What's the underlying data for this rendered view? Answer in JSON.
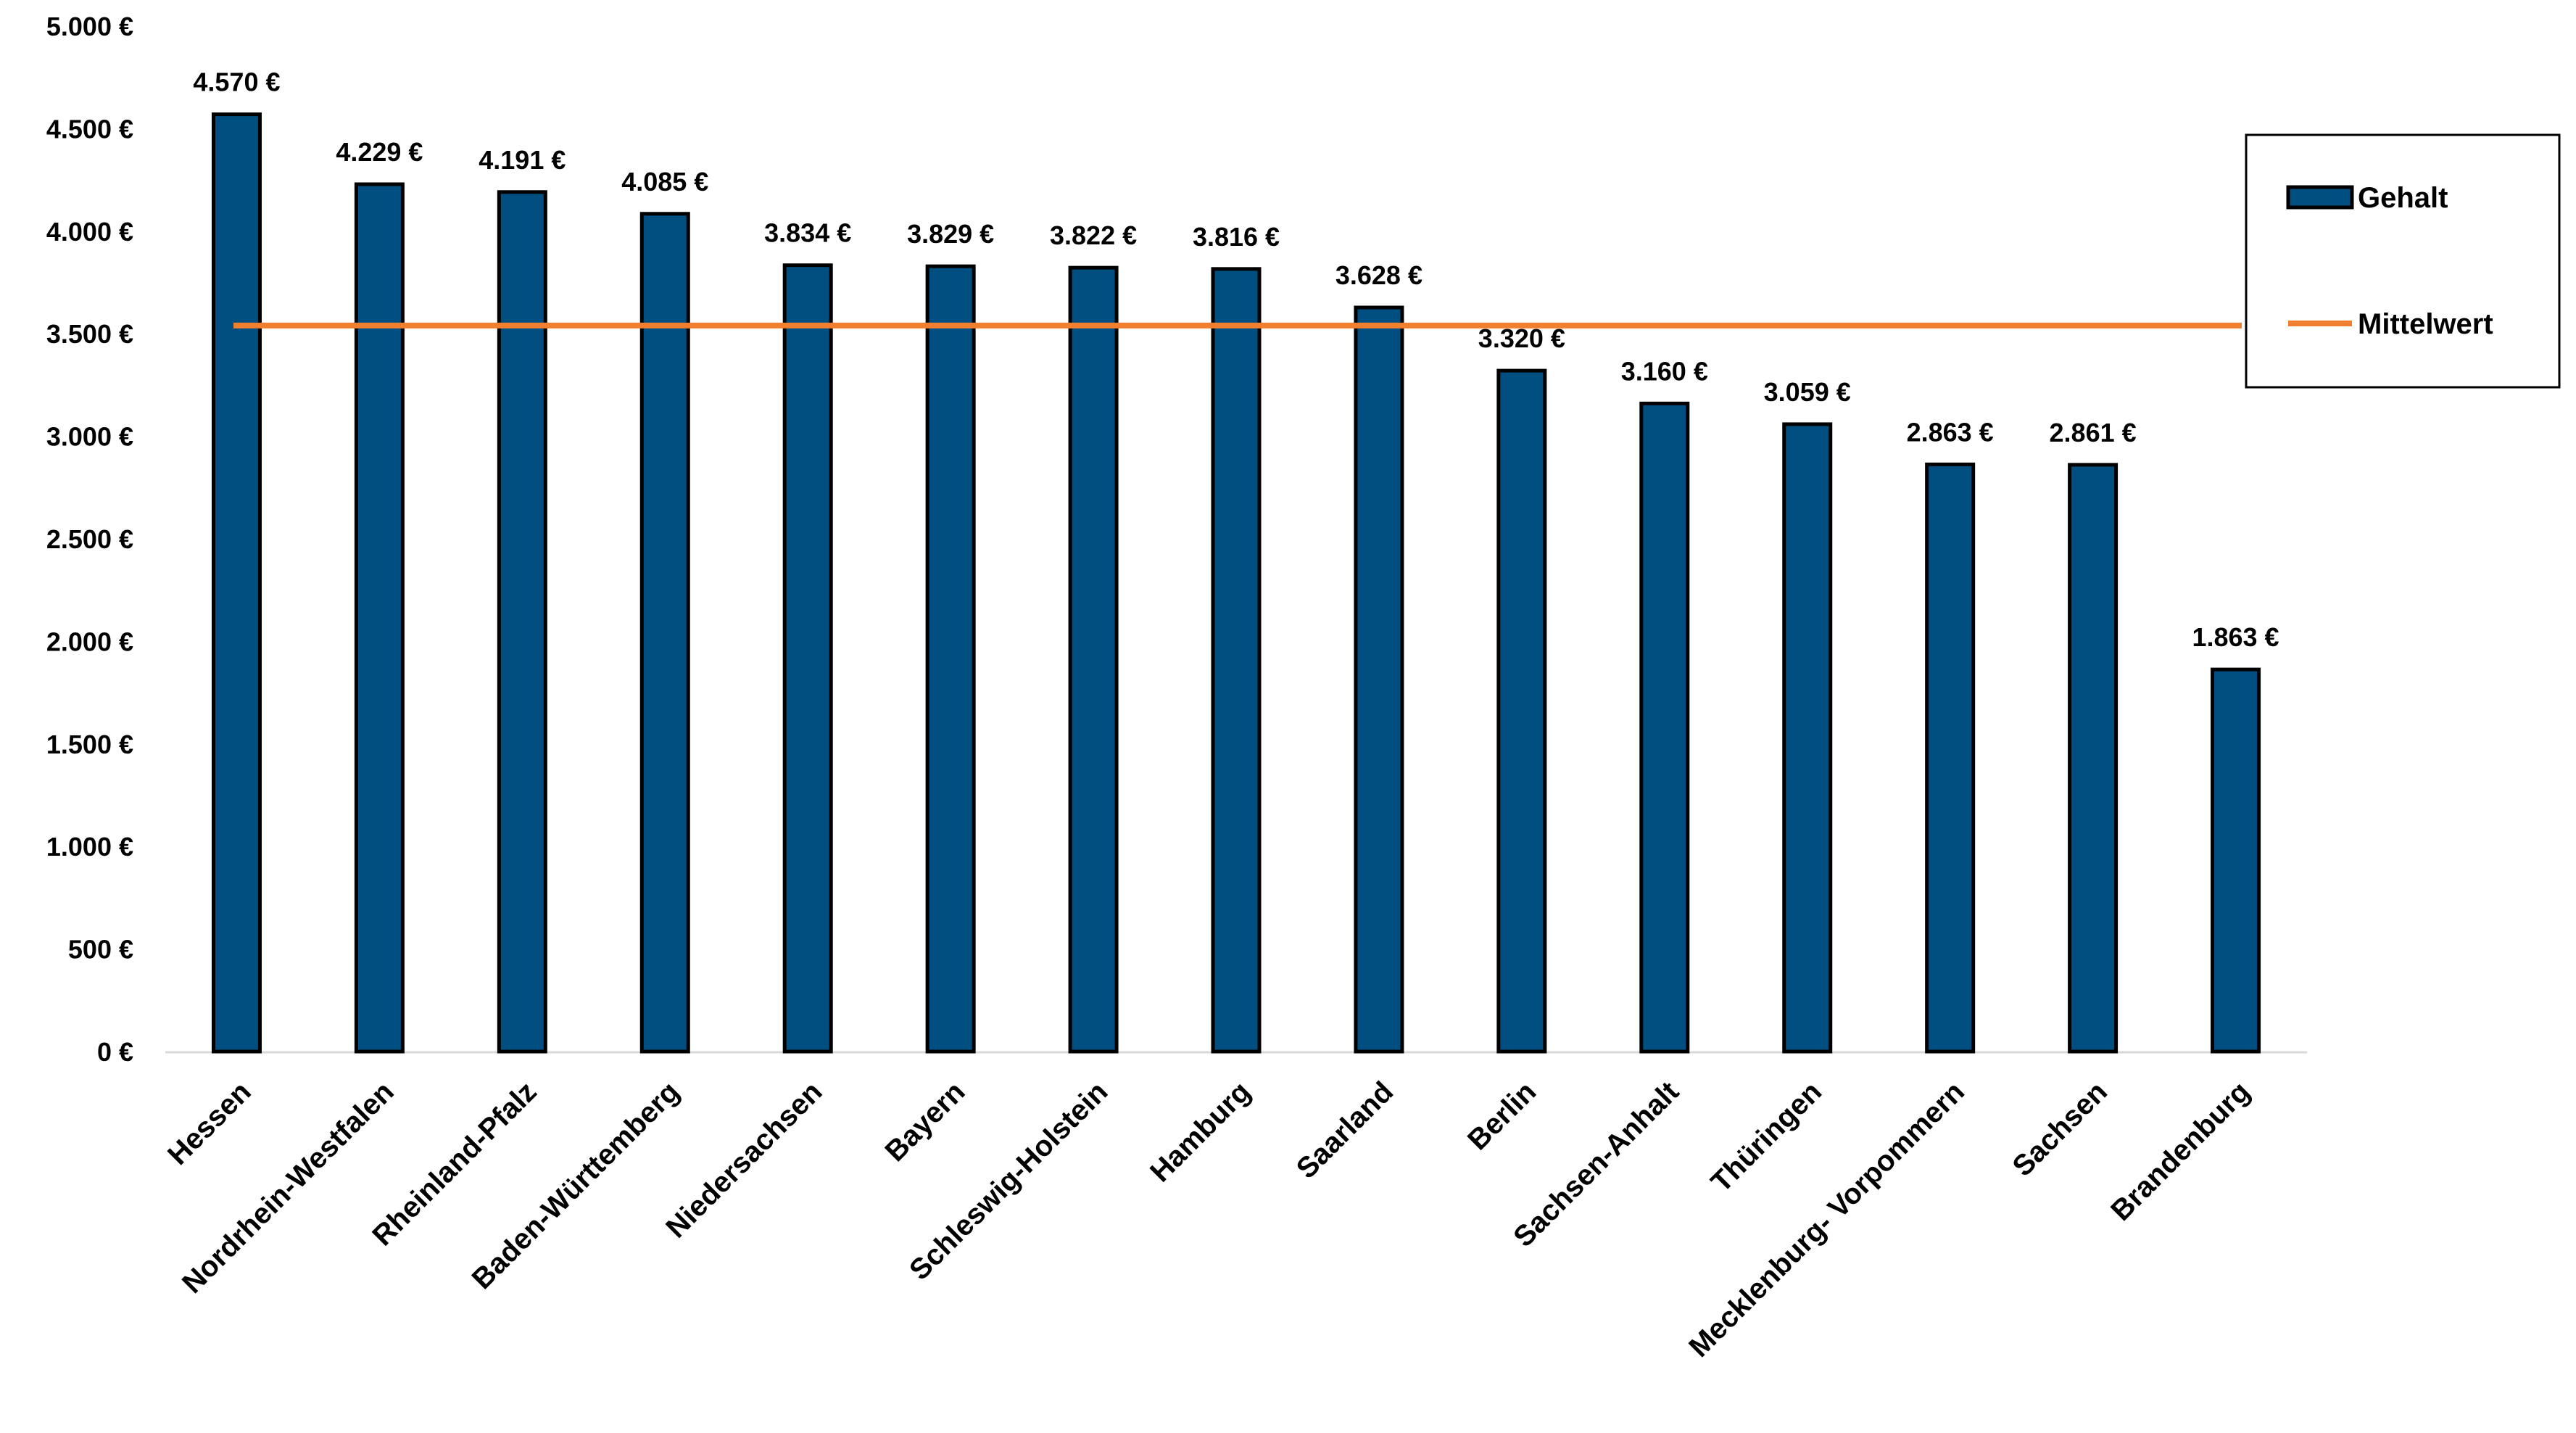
{
  "chart_data": {
    "type": "bar",
    "categories": [
      "Hessen",
      "Nordrhein-Westfalen",
      "Rheinland-Pfalz",
      "Baden-Württemberg",
      "Niedersachsen",
      "Bayern",
      "Schleswig-Holstein",
      "Hamburg",
      "Saarland",
      "Berlin",
      "Sachsen-Anhalt",
      "Thüringen",
      "Mecklenburg- Vorpommern",
      "Sachsen",
      "Brandenburg"
    ],
    "series": [
      {
        "name": "Gehalt",
        "type": "bar",
        "color": "#004f80",
        "values": [
          4570,
          4229,
          4191,
          4085,
          3834,
          3829,
          3822,
          3816,
          3628,
          3320,
          3160,
          3059,
          2863,
          2861,
          1863
        ],
        "labels": [
          "4.570 €",
          "4.229 €",
          "4.191 €",
          "4.085 €",
          "3.834 €",
          "3.829 €",
          "3.822 €",
          "3.816 €",
          "3.628 €",
          "3.320 €",
          "3.160 €",
          "3.059 €",
          "2.863 €",
          "2.861 €",
          "1.863 €"
        ]
      },
      {
        "name": "Mittelwert",
        "type": "line",
        "color": "#f07f2f",
        "value": 3540
      }
    ],
    "ylim": [
      0,
      5000
    ],
    "yticks": [
      0,
      500,
      1000,
      1500,
      2000,
      2500,
      3000,
      3500,
      4000,
      4500,
      5000
    ],
    "ytick_labels": [
      "0 €",
      "500 €",
      "1.000 €",
      "1.500 €",
      "2.000 €",
      "2.500 €",
      "3.000 €",
      "3.500 €",
      "4.000 €",
      "4.500 €",
      "5.000 €"
    ],
    "legend": {
      "position": "right",
      "entries": [
        "Gehalt",
        "Mittelwert"
      ]
    },
    "grid": false,
    "title": "",
    "xlabel": "",
    "ylabel": ""
  }
}
